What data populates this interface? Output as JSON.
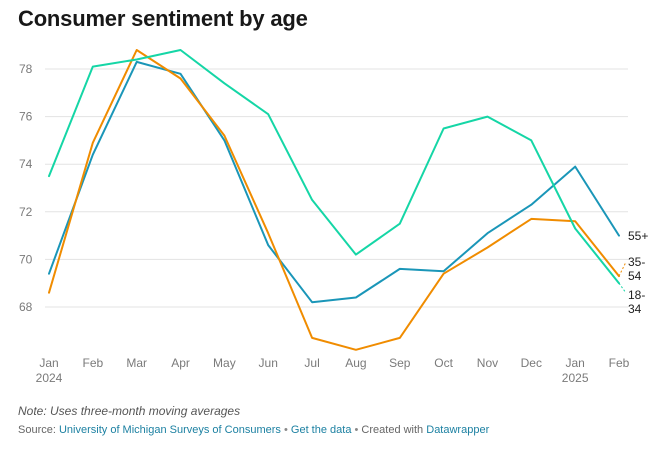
{
  "chart_data": {
    "type": "line",
    "title": "Consumer sentiment by age",
    "x": [
      "Jan",
      "Feb",
      "Mar",
      "Apr",
      "May",
      "Jun",
      "Jul",
      "Aug",
      "Sep",
      "Oct",
      "Nov",
      "Dec",
      "Jan",
      "Feb"
    ],
    "x_year_labels": {
      "0": "2024",
      "12": "2025"
    },
    "yticks": [
      68,
      70,
      72,
      74,
      76,
      78
    ],
    "ylim": [
      66,
      79
    ],
    "grid": true,
    "series": [
      {
        "name": "55+",
        "label_lines": [
          "55+"
        ],
        "color": "#1a96b8",
        "values": [
          69.4,
          74.4,
          78.3,
          77.8,
          75.0,
          70.6,
          68.2,
          68.4,
          69.6,
          69.5,
          71.1,
          72.3,
          73.9,
          71.0
        ]
      },
      {
        "name": "35-54",
        "label_lines": [
          "35-",
          "54"
        ],
        "color": "#f08c00",
        "values": [
          68.6,
          74.9,
          78.8,
          77.6,
          75.2,
          71.1,
          66.7,
          66.2,
          66.7,
          69.4,
          70.5,
          71.7,
          71.6,
          69.3
        ]
      },
      {
        "name": "18-34",
        "label_lines": [
          "18-",
          "34"
        ],
        "color": "#15d6a6",
        "values": [
          73.5,
          78.1,
          78.4,
          78.8,
          77.4,
          76.1,
          72.5,
          70.2,
          71.5,
          75.5,
          76.0,
          75.0,
          71.3,
          69.0
        ]
      }
    ]
  },
  "note": "Note: Uses three-month moving averages",
  "source": {
    "prefix": "Source:",
    "source_link": "University of Michigan Surveys of Consumers",
    "sep1": "•",
    "data_link": "Get the data",
    "sep2": "•",
    "created": "Created with",
    "tool_link": "Datawrapper"
  }
}
